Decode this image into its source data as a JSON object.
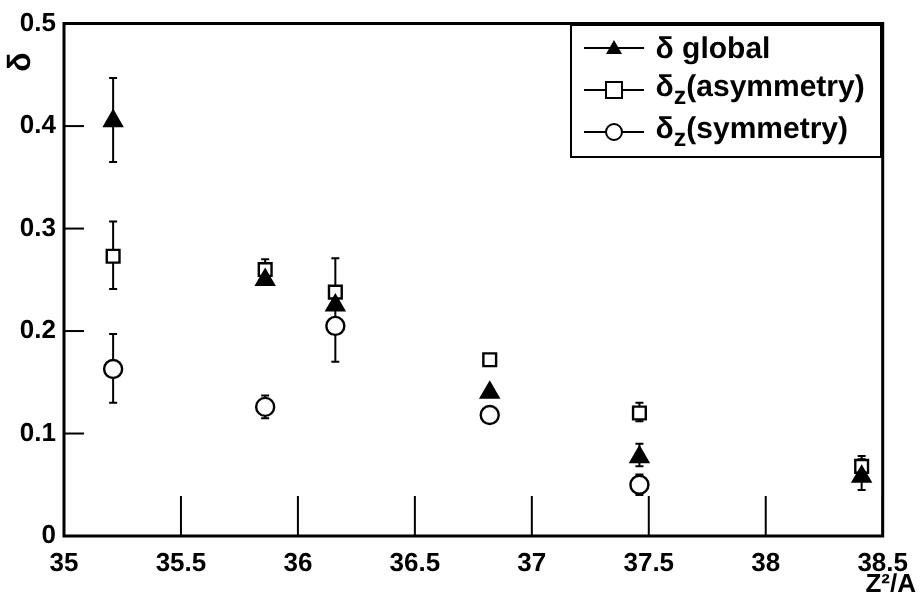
{
  "chart_data": {
    "type": "scatter",
    "ylabel": "δ",
    "xlabel": "Z²/A",
    "x": [
      35.21,
      35.86,
      36.16,
      36.82,
      37.46,
      38.41
    ],
    "series": [
      {
        "name": "δ global",
        "color": "#000000",
        "marker": "triangle",
        "values": [
          0.405,
          0.25,
          0.225,
          0.14,
          0.077,
          0.058
        ],
        "errors": [
          [
            0.365,
            0.447
          ],
          null,
          null,
          null,
          [
            0.068,
            0.09
          ],
          [
            0.045,
            0.075
          ]
        ]
      },
      {
        "name": "δ$_{z}$(asymmetry)",
        "color": "#000000",
        "marker": "square",
        "values": [
          0.273,
          0.26,
          0.238,
          0.172,
          0.12,
          0.068
        ],
        "errors": [
          [
            0.241,
            0.307
          ],
          [
            0.255,
            0.27
          ],
          null,
          null,
          [
            0.112,
            0.13
          ],
          [
            0.055,
            0.078
          ]
        ]
      },
      {
        "name": "δ$_{z}$(symmetry)",
        "color": "#000000",
        "marker": "circle",
        "values": [
          0.163,
          0.126,
          0.205,
          0.118,
          0.05,
          null
        ],
        "errors": [
          [
            0.13,
            0.197
          ],
          [
            0.115,
            0.137
          ],
          [
            0.17,
            0.271
          ],
          null,
          [
            0.04,
            0.06
          ],
          null
        ]
      }
    ],
    "xlim": [
      35,
      38.5
    ],
    "xticks": [
      35,
      35.5,
      36,
      36.5,
      37,
      37.5,
      38,
      38.5
    ],
    "ylim": [
      0,
      0.5
    ],
    "yticks": [
      0,
      0.1,
      0.2,
      0.3,
      0.4,
      0.5
    ],
    "grid": false,
    "legend": "top right"
  }
}
